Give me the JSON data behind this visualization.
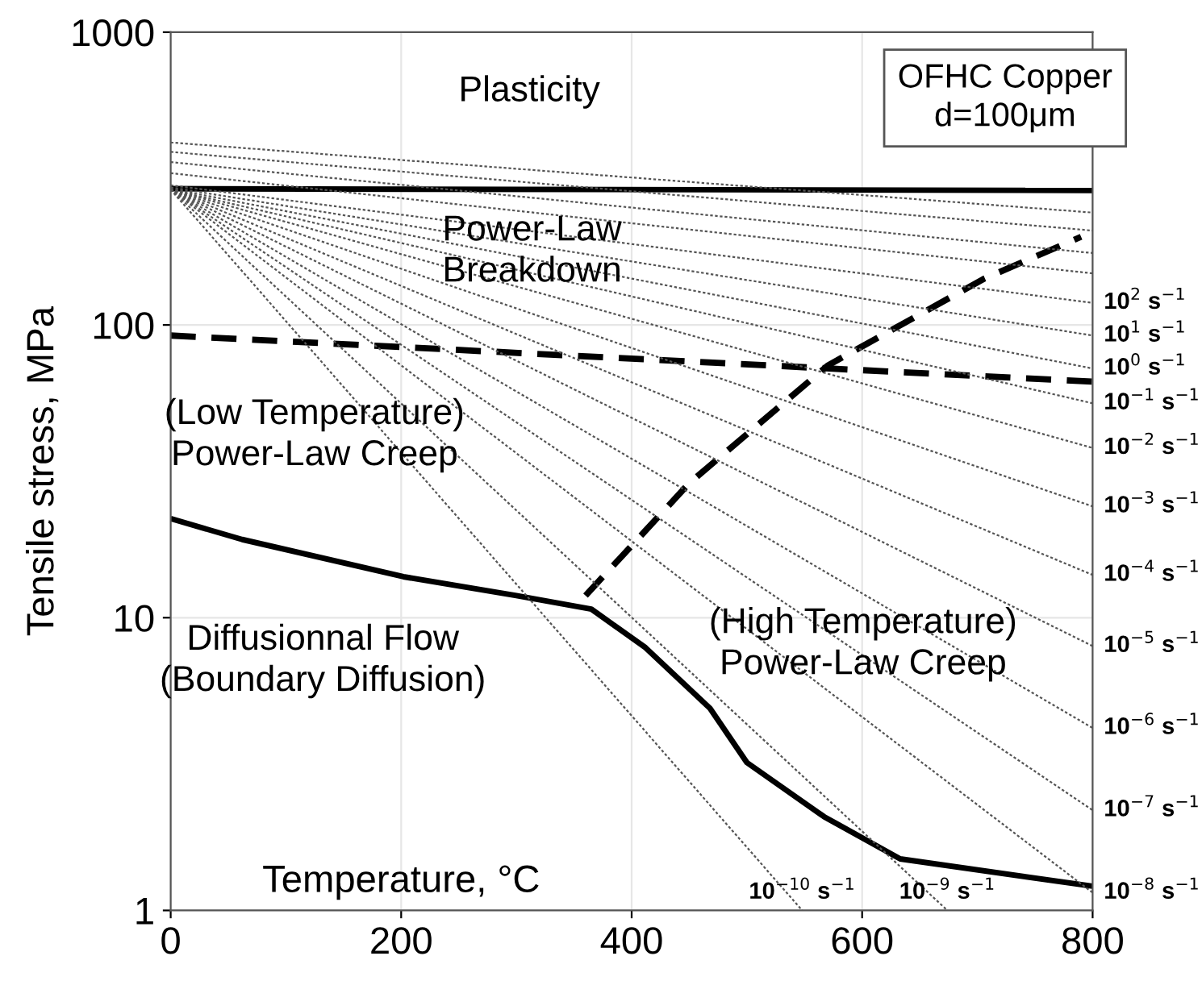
{
  "chart_data": {
    "type": "line",
    "xlabel": "Temperature, °C",
    "ylabel": "Tensile stress, MPa",
    "xlim": [
      0,
      800
    ],
    "xticks": [
      0,
      200,
      400,
      600,
      800
    ],
    "ylim": [
      1,
      1000
    ],
    "yticks": [
      1,
      10,
      100,
      1000
    ],
    "log": "y",
    "grid": true,
    "series": [
      {
        "color": "#000000",
        "line_style": "solid",
        "x": [
          0,
          800
        ],
        "values": [
          292,
          288
        ]
      },
      {
        "color": "#000000",
        "line_style": "dashed",
        "x": [
          0,
          800
        ],
        "values": [
          92,
          64
        ]
      },
      {
        "color": "#000000",
        "line_style": "solid",
        "x": [
          0,
          62,
          202,
          300,
          365,
          412,
          468,
          500,
          567,
          633,
          800
        ],
        "values": [
          21.8,
          18.5,
          13.8,
          11.9,
          10.7,
          7.9,
          4.9,
          3.2,
          2.09,
          1.5,
          1.21
        ]
      },
      {
        "color": "#000000",
        "line_style": "dashed",
        "x": [
          360,
          450,
          570,
          706,
          790
        ],
        "values": [
          11.9,
          28.8,
          72.6,
          144,
          200
        ]
      },
      {
        "color": "#555555",
        "line_style": "dotted",
        "x": [
          0,
          800
        ],
        "values": [
          420,
          242
        ]
      },
      {
        "color": "#555555",
        "line_style": "dotted",
        "x": [
          0,
          800
        ],
        "values": [
          390,
          210
        ]
      },
      {
        "color": "#555555",
        "line_style": "dotted",
        "x": [
          0,
          800
        ],
        "values": [
          360,
          176
        ]
      },
      {
        "color": "#555555",
        "line_style": "dotted",
        "x": [
          0,
          800
        ],
        "values": [
          330,
          150
        ]
      },
      {
        "name": "10$^{2}$ s$^{−1}$",
        "color": "#555555",
        "line_style": "dotted",
        "x": [
          0,
          800
        ],
        "values": [
          300,
          119
        ]
      },
      {
        "name": "10$^{1}$ s$^{−1}$",
        "color": "#555555",
        "line_style": "dotted",
        "x": [
          0,
          800
        ],
        "values": [
          295,
          92
        ]
      },
      {
        "name": "10$^{0}$ s$^{−1}$",
        "color": "#555555",
        "line_style": "dotted",
        "x": [
          0,
          800
        ],
        "values": [
          292,
          71
        ]
      },
      {
        "name": "10$^{−1}$ s$^{−1}$",
        "color": "#555555",
        "line_style": "dotted",
        "x": [
          0,
          800
        ],
        "values": [
          290,
          54
        ]
      },
      {
        "name": "10$^{−2}$ s$^{−1}$",
        "color": "#555555",
        "line_style": "dotted",
        "x": [
          0,
          800
        ],
        "values": [
          290,
          38
        ]
      },
      {
        "name": "10$^{−3}$ s$^{−1}$",
        "color": "#555555",
        "line_style": "dotted",
        "x": [
          0,
          800
        ],
        "values": [
          290,
          24
        ]
      },
      {
        "name": "10$^{−4}$ s$^{−1}$",
        "color": "#555555",
        "line_style": "dotted",
        "x": [
          0,
          800
        ],
        "values": [
          290,
          14
        ]
      },
      {
        "name": "10$^{−5}$ s$^{−1}$",
        "color": "#555555",
        "line_style": "dotted",
        "x": [
          0,
          800
        ],
        "values": [
          290,
          8
        ]
      },
      {
        "name": "10$^{−6}$ s$^{−1}$",
        "color": "#555555",
        "line_style": "dotted",
        "x": [
          0,
          800
        ],
        "values": [
          290,
          4.2
        ]
      },
      {
        "name": "10$^{−7}$ s$^{−1}$",
        "color": "#555555",
        "line_style": "dotted",
        "x": [
          0,
          800
        ],
        "values": [
          290,
          2.2
        ]
      },
      {
        "name": "10$^{−8}$ s$^{−1}$",
        "color": "#555555",
        "line_style": "dotted",
        "x": [
          0,
          800
        ],
        "values": [
          290,
          1.15
        ]
      },
      {
        "name": "10$^{−9}$ s$^{−1}$",
        "color": "#555555",
        "line_style": "dotted",
        "x": [
          0,
          674
        ],
        "values": [
          290,
          1
        ]
      },
      {
        "name": "10$^{−10}$ s$^{−1}$",
        "color": "#555555",
        "line_style": "dotted",
        "x": [
          0,
          548
        ],
        "values": [
          290,
          1
        ]
      }
    ],
    "annotations": [
      "Plasticity",
      "Power-Law\nBreakdown",
      "(Low Temperature)\nPower-Law Creep",
      "Diffusionnal Flow\n(Boundary Diffusion)",
      "(High Temperature)\nPower-Law Creep",
      "OFHC Copper\nd=100μm"
    ]
  }
}
